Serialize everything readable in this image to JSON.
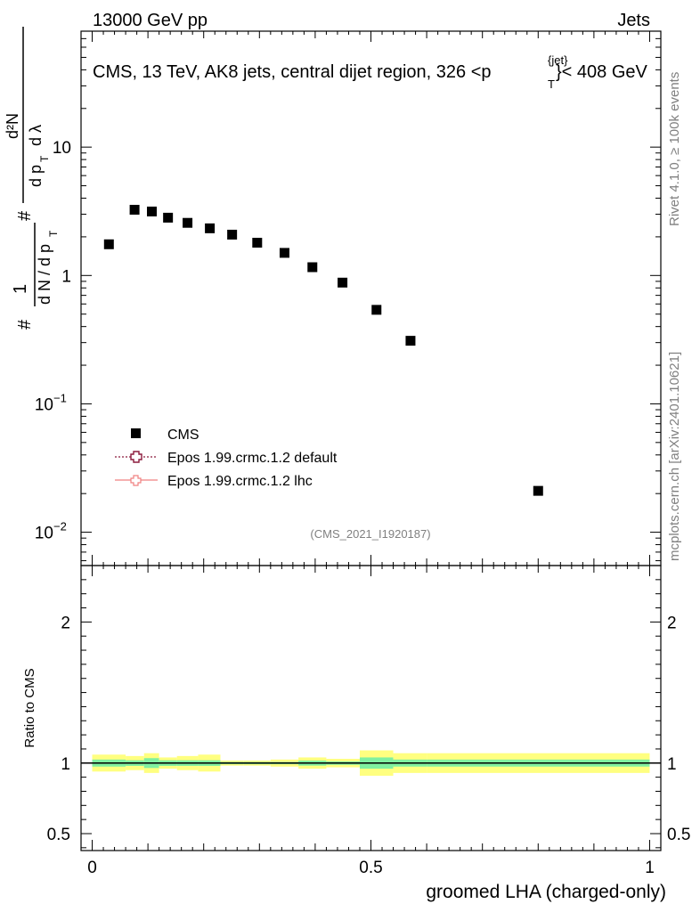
{
  "header": {
    "left": "13000 GeV pp",
    "right": "Jets",
    "title": "CMS, 13 TeV, AK8 jets, central dijet region, 326 <p",
    "title_sub": "T",
    "title_sup": "{jet}",
    "title_tail": "}< 408 GeV"
  },
  "side": {
    "rivet": "Rivet 4.1.0, ≥ 100k events",
    "mcplots": "mcplots.cern.ch [arXiv:2401.10621]"
  },
  "watermark": "(CMS_2021_I1920187)",
  "legend": {
    "items": [
      {
        "label": "CMS",
        "color": "#000000"
      },
      {
        "label": "Epos 1.99.crmc.1.2 default",
        "color": "#8b1a3c"
      },
      {
        "label": "Epos 1.99.crmc.1.2 lhc",
        "color": "#f08080"
      }
    ]
  },
  "chart_data": [
    {
      "type": "scatter",
      "panel": "main",
      "yscale": "log",
      "ylabel": "1/dN/dpT # d²N/dpT dλ",
      "yticks": [
        {
          "v": 0.01,
          "text": "10",
          "sup": "−2"
        },
        {
          "v": 0.1,
          "text": "10",
          "sup": "−1"
        },
        {
          "v": 1,
          "text": "1",
          "sup": ""
        },
        {
          "v": 10,
          "text": "10",
          "sup": ""
        }
      ],
      "ylim": [
        0.0055,
        80
      ],
      "xlim": [
        -0.02,
        1.02
      ],
      "series": [
        {
          "name": "CMS",
          "x": [
            0.03,
            0.076,
            0.107,
            0.136,
            0.171,
            0.211,
            0.251,
            0.296,
            0.345,
            0.395,
            0.449,
            0.51,
            0.571,
            0.8
          ],
          "y": [
            1.75,
            3.25,
            3.15,
            2.82,
            2.57,
            2.33,
            2.08,
            1.8,
            1.5,
            1.16,
            0.88,
            0.54,
            0.31,
            0.021
          ]
        }
      ]
    },
    {
      "type": "line",
      "panel": "ratio",
      "ylabel": "Ratio to CMS",
      "yticks_left": [
        "2",
        "1",
        "0.5"
      ],
      "yticks_right": [
        "2",
        "1",
        "0.5"
      ],
      "ytick_values": [
        2,
        1,
        0.5
      ],
      "ylim": [
        0.38,
        2.4
      ],
      "xlabel": "groomed LHA (charged-only)",
      "xticks": [
        "0",
        "0.5",
        "1"
      ],
      "xtick_values": [
        0,
        0.5,
        1
      ],
      "xlim": [
        -0.02,
        1.02
      ],
      "reference": 1,
      "band_edges": [
        0,
        0.06,
        0.093,
        0.12,
        0.152,
        0.19,
        0.23,
        0.272,
        0.32,
        0.37,
        0.42,
        0.48,
        0.54,
        0.6,
        1.0
      ],
      "band_inner": [
        0.025,
        0.02,
        0.035,
        0.02,
        0.02,
        0.02,
        0.008,
        0.008,
        0.008,
        0.018,
        0.012,
        0.04,
        0.025,
        0.025
      ],
      "band_outer": [
        0.06,
        0.05,
        0.07,
        0.04,
        0.05,
        0.06,
        0.018,
        0.018,
        0.025,
        0.04,
        0.03,
        0.09,
        0.07,
        0.07
      ]
    }
  ]
}
